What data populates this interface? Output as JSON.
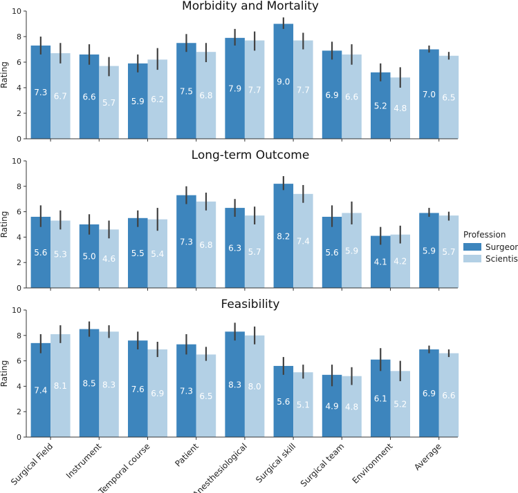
{
  "legend": {
    "title": "Profession"
  },
  "chart_data": {
    "type": "bar",
    "categories": [
      "Surgical Field",
      "Instrument",
      "Temporal course",
      "Patient",
      "Anesthesiological",
      "Surgical skill",
      "Surgical team",
      "Environment",
      "Average"
    ],
    "ylabel": "Rating",
    "ylim": [
      0,
      10
    ],
    "yticks": [
      "0",
      "2",
      "4",
      "6",
      "8",
      "10"
    ],
    "series_meta": [
      {
        "name": "Surgeon",
        "color": "#3d85bd"
      },
      {
        "name": "Scientist",
        "color": "#b3d0e5"
      }
    ],
    "panels": [
      {
        "title": "Morbidity and Mortality",
        "series": [
          {
            "name": "Surgeon",
            "values": [
              7.3,
              6.6,
              5.9,
              7.5,
              7.9,
              9.0,
              6.9,
              5.2,
              7.0
            ],
            "labels": [
              "7.3",
              "6.6",
              "5.9",
              "7.5",
              "7.9",
              "9.0",
              "6.9",
              "5.2",
              "7.0"
            ],
            "err_low": [
              6.6,
              5.8,
              5.2,
              6.8,
              7.3,
              8.6,
              6.2,
              4.5,
              6.75
            ],
            "err_high": [
              8.0,
              7.4,
              6.6,
              8.2,
              8.6,
              9.5,
              7.6,
              5.9,
              7.3
            ]
          },
          {
            "name": "Scientist",
            "values": [
              6.7,
              5.7,
              6.2,
              6.8,
              7.7,
              7.7,
              6.6,
              4.8,
              6.5
            ],
            "labels": [
              "6.7",
              "5.7",
              "6.2",
              "6.8",
              "7.7",
              "7.7",
              "6.6",
              "4.8",
              "6.5"
            ],
            "err_low": [
              5.9,
              4.9,
              5.4,
              6.0,
              6.9,
              7.0,
              5.8,
              4.0,
              6.2
            ],
            "err_high": [
              7.5,
              6.4,
              7.1,
              7.5,
              8.4,
              8.3,
              7.4,
              5.6,
              6.8
            ]
          }
        ]
      },
      {
        "title": "Long-term Outcome",
        "series": [
          {
            "name": "Surgeon",
            "values": [
              5.6,
              5.0,
              5.5,
              7.3,
              6.3,
              8.2,
              5.6,
              4.1,
              5.9
            ],
            "labels": [
              "5.6",
              "5.0",
              "5.5",
              "7.3",
              "6.3",
              "8.2",
              "5.6",
              "4.1",
              "5.9"
            ],
            "err_low": [
              4.8,
              4.2,
              4.8,
              6.6,
              5.6,
              7.7,
              4.8,
              3.4,
              5.6
            ],
            "err_high": [
              6.5,
              5.8,
              6.1,
              8.0,
              7.0,
              8.8,
              6.5,
              4.8,
              6.3
            ]
          },
          {
            "name": "Scientist",
            "values": [
              5.3,
              4.6,
              5.4,
              6.8,
              5.7,
              7.4,
              5.9,
              4.2,
              5.7
            ],
            "labels": [
              "5.3",
              "4.6",
              "5.4",
              "6.8",
              "5.7",
              "7.4",
              "5.9",
              "4.2",
              "5.7"
            ],
            "err_low": [
              4.6,
              3.9,
              4.5,
              6.1,
              5.0,
              6.7,
              5.0,
              3.5,
              5.3
            ],
            "err_high": [
              6.1,
              5.3,
              6.3,
              7.5,
              6.4,
              8.1,
              6.8,
              4.9,
              6.0
            ]
          }
        ]
      },
      {
        "title": "Feasibility",
        "series": [
          {
            "name": "Surgeon",
            "values": [
              7.4,
              8.5,
              7.6,
              7.3,
              8.3,
              5.6,
              4.9,
              6.1,
              6.9
            ],
            "labels": [
              "7.4",
              "8.5",
              "7.6",
              "7.3",
              "8.3",
              "5.6",
              "4.9",
              "6.1",
              "6.9"
            ],
            "err_low": [
              6.6,
              7.9,
              6.9,
              6.5,
              7.6,
              4.9,
              4.0,
              5.2,
              6.6
            ],
            "err_high": [
              8.1,
              9.1,
              8.3,
              8.1,
              9.0,
              6.3,
              5.7,
              7.0,
              7.2
            ]
          },
          {
            "name": "Scientist",
            "values": [
              8.1,
              8.3,
              6.9,
              6.5,
              8.0,
              5.1,
              4.8,
              5.2,
              6.6
            ],
            "labels": [
              "8.1",
              "8.3",
              "6.9",
              "6.5",
              "8.0",
              "5.1",
              "4.8",
              "5.2",
              "6.6"
            ],
            "err_low": [
              7.4,
              7.8,
              6.3,
              6.0,
              7.3,
              4.6,
              4.1,
              4.4,
              6.3
            ],
            "err_high": [
              8.8,
              8.8,
              7.5,
              7.1,
              8.7,
              5.7,
              5.5,
              6.0,
              6.9
            ]
          }
        ]
      }
    ]
  }
}
